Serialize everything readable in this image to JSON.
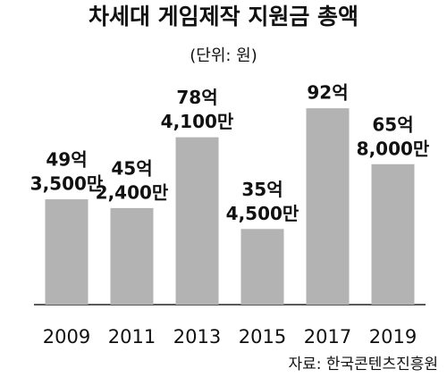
{
  "chart_data": {
    "type": "bar",
    "title": "차세대 게임제작 지원금 총액",
    "subtitle": "(단위: 원)",
    "source": "자료: 한국콘텐츠진흥원",
    "categories": [
      "2009",
      "2011",
      "2013",
      "2015",
      "2017",
      "2019"
    ],
    "values": [
      4935000000,
      4524000000,
      7841000000,
      3545000000,
      9200000000,
      6580000000
    ],
    "value_labels": [
      [
        "49억",
        "3,500만"
      ],
      [
        "45억",
        "2,400만"
      ],
      [
        "78억",
        "4,100만"
      ],
      [
        "35억",
        "4,500만"
      ],
      [
        "92억"
      ],
      [
        "65억",
        "8,000만"
      ]
    ],
    "color": "#b3b3b3",
    "ylim": [
      0,
      9500000000
    ]
  }
}
